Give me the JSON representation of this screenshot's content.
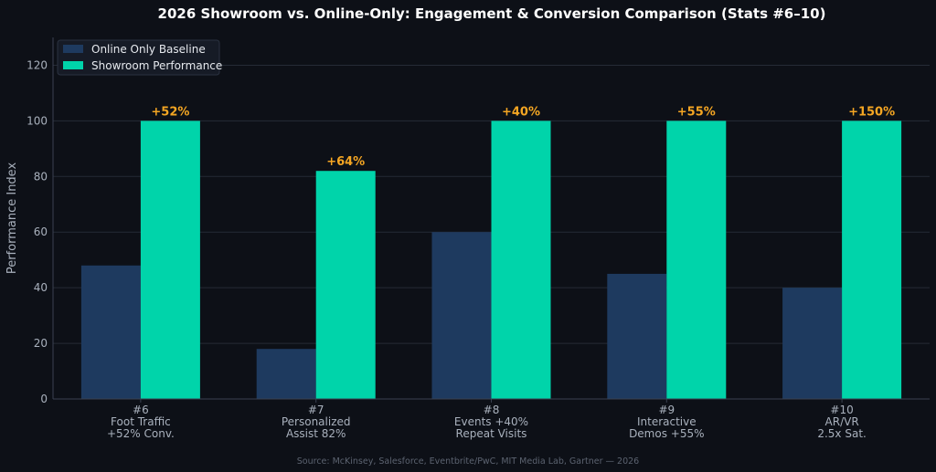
{
  "chart_data": {
    "type": "bar",
    "title": "2026 Showroom vs. Online-Only: Engagement & Conversion Comparison (Stats #6–10)",
    "ylabel": "Performance Index",
    "xlabel": "",
    "ylim": [
      0,
      130
    ],
    "yticks": [
      0,
      20,
      40,
      60,
      80,
      100,
      120
    ],
    "grid": true,
    "legend_position": "top-left",
    "categories": [
      [
        "#6",
        "Foot Traffic",
        "+52% Conv."
      ],
      [
        "#7",
        "Personalized",
        "Assist 82%"
      ],
      [
        "#8",
        "Events +40%",
        "Repeat Visits"
      ],
      [
        "#9",
        "Interactive",
        "Demos +55%"
      ],
      [
        "#10",
        "AR/VR",
        "2.5x Sat."
      ]
    ],
    "series": [
      {
        "name": "Online Only Baseline",
        "color": "#1e3a5f",
        "values": [
          48,
          18,
          60,
          45,
          40
        ]
      },
      {
        "name": "Showroom Performance",
        "color": "#00d4aa",
        "values": [
          100,
          82,
          100,
          100,
          100
        ]
      }
    ],
    "annotations": [
      "+52%",
      "+64%",
      "+40%",
      "+55%",
      "+150%"
    ],
    "annotation_color": "#f5a623",
    "source": "Source: McKinsey, Salesforce, Eventbrite/PwC, MIT Media Lab, Gartner — 2026"
  }
}
